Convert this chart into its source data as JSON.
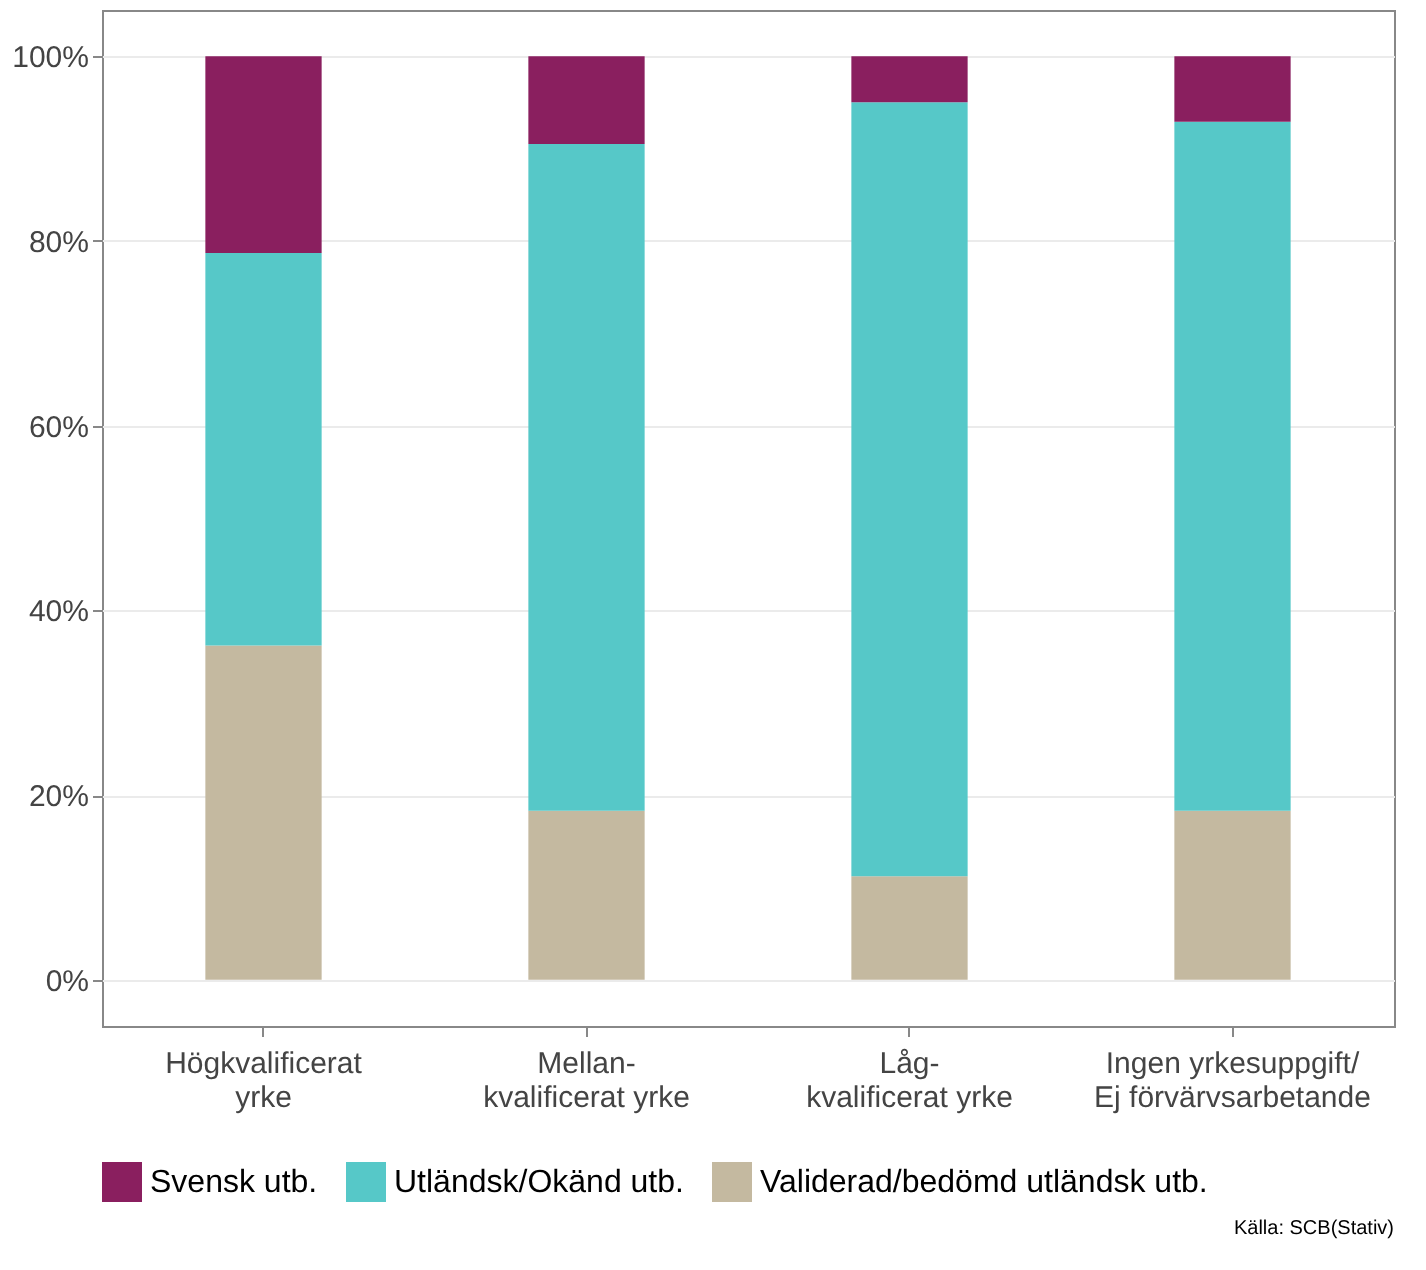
{
  "chart_data": {
    "type": "bar",
    "stacked": true,
    "categories": [
      "Högkvalificerat\nyrke",
      "Mellan-\nkvalificerat yrke",
      "Låg-\nkvalificerat yrke",
      "Ingen yrkesuppgift/\nEj förvärvsarbetande"
    ],
    "series": [
      {
        "name": "Validerad/bedömd utländsk utb.",
        "color": "#c4b9a0",
        "values": [
          36.2,
          18.3,
          11.2,
          18.3
        ]
      },
      {
        "name": "Utländsk/Okänd utb.",
        "color": "#56c8c8",
        "values": [
          42.5,
          72.2,
          83.8,
          74.6
        ]
      },
      {
        "name": "Svensk utb.",
        "color": "#8a1f5f",
        "values": [
          21.3,
          9.5,
          5.0,
          7.1
        ]
      }
    ],
    "ylim": [
      -5,
      105
    ],
    "yticks": [
      {
        "value": 0,
        "label": "0%"
      },
      {
        "value": 20,
        "label": "20%"
      },
      {
        "value": 40,
        "label": "40%"
      },
      {
        "value": 60,
        "label": "60%"
      },
      {
        "value": 80,
        "label": "80%"
      },
      {
        "value": 100,
        "label": "100%"
      }
    ],
    "grid": "y",
    "legend": "bottom",
    "annotations": [
      "Källa: SCB(Stativ)"
    ]
  }
}
